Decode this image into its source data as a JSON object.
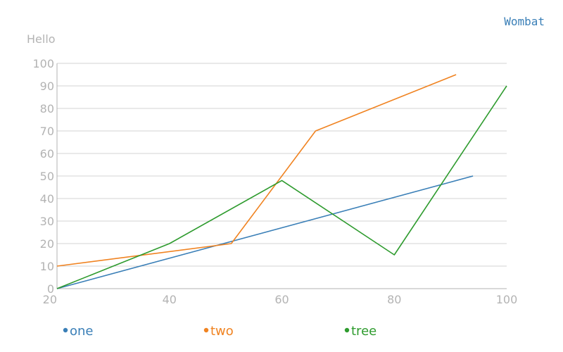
{
  "chart_data": {
    "type": "line",
    "title": "",
    "ylabel": "Hello",
    "xlabel": "",
    "brand_label": "Wombat",
    "xlim": [
      20,
      100
    ],
    "ylim": [
      0,
      100
    ],
    "x_ticks": [
      20,
      40,
      60,
      80,
      100
    ],
    "y_ticks": [
      0,
      10,
      20,
      30,
      40,
      50,
      60,
      70,
      80,
      90,
      100
    ],
    "grid": true,
    "legend_position": "bottom",
    "colors": {
      "one": "#3a7fb7",
      "two": "#f08321",
      "tree": "#2e9b2e",
      "axis": "#b3b3b3",
      "grid": "#d3d3d3",
      "brand": "#3a7fb7"
    },
    "series": [
      {
        "name": "one",
        "points": [
          [
            20,
            0
          ],
          [
            94,
            50
          ]
        ]
      },
      {
        "name": "two",
        "points": [
          [
            20,
            10
          ],
          [
            51,
            20
          ],
          [
            66,
            70
          ],
          [
            91,
            95
          ]
        ]
      },
      {
        "name": "tree",
        "points": [
          [
            20,
            0
          ],
          [
            40,
            20
          ],
          [
            60,
            48
          ],
          [
            80,
            15
          ],
          [
            100,
            90
          ]
        ]
      }
    ]
  }
}
